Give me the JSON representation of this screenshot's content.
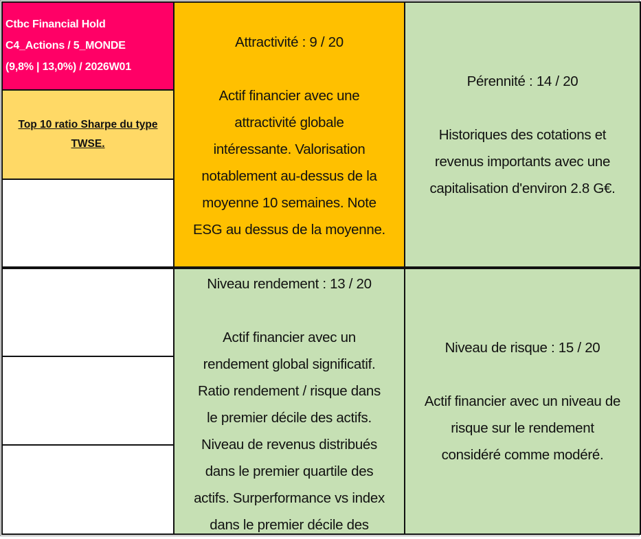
{
  "header": {
    "title": "Ctbc Financial Hold\nC4_Actions / 5_MONDE\n(9,8% | 13,0%) / 2026W01",
    "note": "Top 10 ratio Sharpe du type\nTWSE. "
  },
  "cards": {
    "attractivite": {
      "title": "Attractivité : 9 / 20",
      "body": "Actif financier avec une\nattractivité globale\nintéressante. Valorisation\nnotablement au-dessus de la\nmoyenne 10 semaines. Note\nESG au dessus de la moyenne."
    },
    "perennite": {
      "title": "Pérennité : 14 / 20",
      "body": "Historiques des cotations et\nrevenus importants avec une\ncapitalisation d'environ 2.8 G€."
    },
    "rendement": {
      "title": "Niveau rendement : 13 / 20",
      "body": "Actif financier avec un\nrendement global significatif.\nRatio rendement / risque dans\nle premier décile des actifs.\nNiveau de revenus distribués\ndans le premier quartile des\nactifs. Surperformance vs index\ndans le premier décile des"
    },
    "risque": {
      "title": "Niveau de risque : 15 / 20",
      "body": "Actif financier avec un niveau de\nrisque sur le rendement\nconsidéré comme modéré."
    }
  },
  "colors": {
    "title_bg": "#FF0066",
    "note_bg": "#FFD966",
    "attractivite_bg": "#FFC000",
    "green_bg": "#C6E0B4"
  }
}
